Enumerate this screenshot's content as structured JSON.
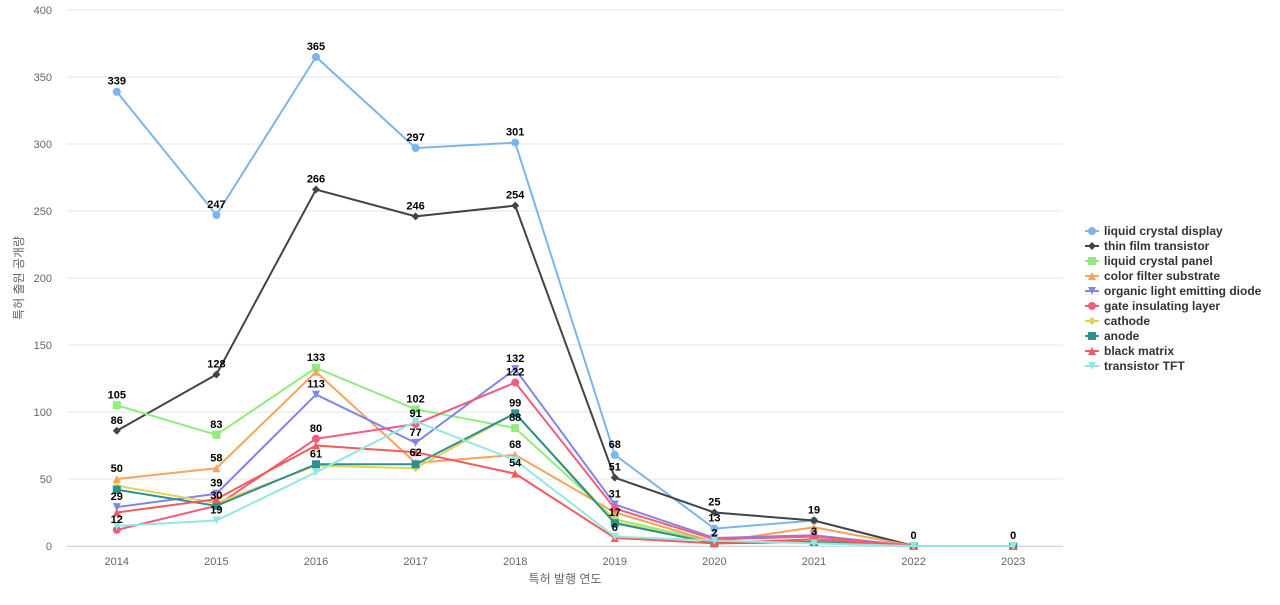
{
  "chart_data": {
    "type": "line",
    "title": "",
    "xlabel": "특허 발행 연도",
    "ylabel": "특허 출원 공개량",
    "ylim": [
      0,
      400
    ],
    "yticks": [
      0,
      50,
      100,
      150,
      200,
      250,
      300,
      350,
      400
    ],
    "categories": [
      "2014",
      "2015",
      "2016",
      "2017",
      "2018",
      "2019",
      "2020",
      "2021",
      "2022",
      "2023"
    ],
    "grid": true,
    "legend_position": "right",
    "series": [
      {
        "name": "liquid crystal display",
        "color": "#7cb5ec",
        "marker": "circle",
        "values": [
          339,
          247,
          365,
          297,
          301,
          68,
          13,
          19,
          0,
          0
        ],
        "labels": [
          true,
          true,
          true,
          true,
          true,
          true,
          true,
          true,
          false,
          true
        ]
      },
      {
        "name": "thin film transistor",
        "color": "#434348",
        "marker": "diamond",
        "values": [
          86,
          128,
          266,
          246,
          254,
          51,
          25,
          19,
          0,
          0
        ],
        "labels": [
          true,
          true,
          true,
          true,
          true,
          true,
          true,
          false,
          true,
          false
        ]
      },
      {
        "name": "liquid crystal panel",
        "color": "#90ed7d",
        "marker": "square",
        "values": [
          105,
          83,
          133,
          102,
          88,
          20,
          3,
          4,
          0,
          0
        ],
        "labels": [
          true,
          true,
          true,
          true,
          true,
          false,
          false,
          false,
          false,
          false
        ]
      },
      {
        "name": "color filter substrate",
        "color": "#f7a35c",
        "marker": "triangle",
        "values": [
          50,
          58,
          130,
          62,
          68,
          25,
          3,
          14,
          0,
          0
        ],
        "labels": [
          true,
          true,
          false,
          true,
          true,
          false,
          false,
          false,
          false,
          false
        ]
      },
      {
        "name": "organic light emitting diode",
        "color": "#8085e9",
        "marker": "triangle-down",
        "values": [
          29,
          39,
          113,
          77,
          132,
          31,
          6,
          8,
          0,
          0
        ],
        "labels": [
          true,
          true,
          true,
          true,
          true,
          true,
          false,
          false,
          false,
          false
        ]
      },
      {
        "name": "gate insulating layer",
        "color": "#f15c80",
        "marker": "circle",
        "values": [
          12,
          30,
          80,
          91,
          122,
          28,
          5,
          7,
          0,
          0
        ],
        "labels": [
          true,
          true,
          true,
          true,
          true,
          false,
          false,
          false,
          false,
          false
        ]
      },
      {
        "name": "cathode",
        "color": "#e4d354",
        "marker": "diamond",
        "values": [
          45,
          32,
          60,
          58,
          99,
          18,
          2,
          3,
          0,
          0
        ],
        "labels": [
          false,
          false,
          false,
          false,
          false,
          false,
          true,
          true,
          false,
          false
        ]
      },
      {
        "name": "anode",
        "color": "#2b908f",
        "marker": "square",
        "values": [
          42,
          30,
          61,
          61,
          99,
          17,
          2,
          3,
          0,
          0
        ],
        "labels": [
          false,
          false,
          true,
          false,
          true,
          true,
          false,
          false,
          false,
          false
        ]
      },
      {
        "name": "black matrix",
        "color": "#f45b5b",
        "marker": "triangle",
        "values": [
          25,
          35,
          75,
          70,
          54,
          6,
          2,
          5,
          0,
          0
        ],
        "labels": [
          false,
          false,
          false,
          false,
          true,
          true,
          false,
          false,
          false,
          false
        ]
      },
      {
        "name": "transistor TFT",
        "color": "#91e8e1",
        "marker": "triangle-down",
        "values": [
          15,
          19,
          55,
          93,
          64,
          7,
          4,
          2,
          0,
          0
        ],
        "labels": [
          false,
          true,
          false,
          false,
          false,
          false,
          false,
          false,
          false,
          false
        ]
      }
    ]
  }
}
